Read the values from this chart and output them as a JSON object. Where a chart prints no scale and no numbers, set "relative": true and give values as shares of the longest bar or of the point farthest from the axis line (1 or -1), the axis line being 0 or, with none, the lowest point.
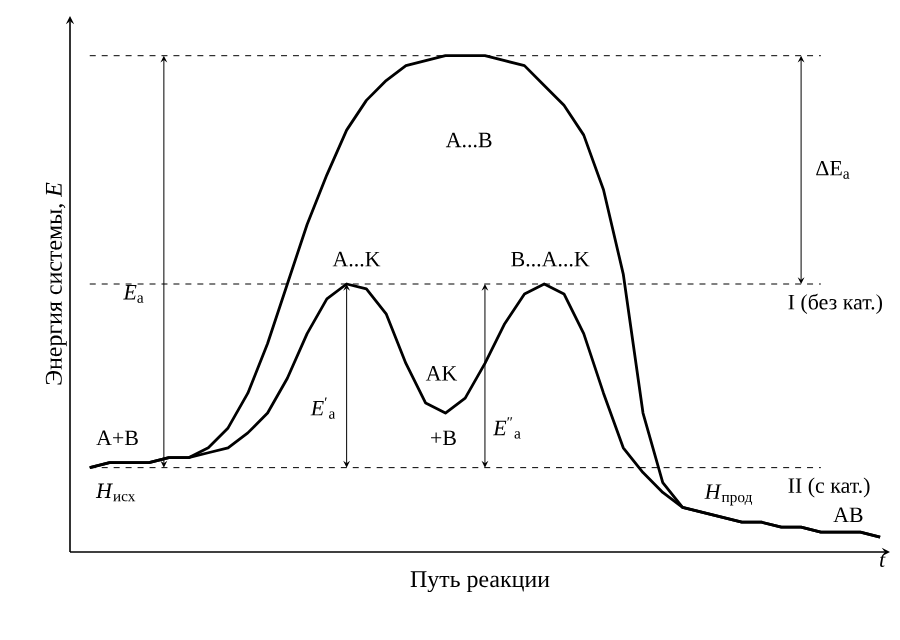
{
  "chart_data": {
    "type": "line",
    "relative": true,
    "xlabel": "Путь реакции",
    "ylabel": "Энергия системы, *E*",
    "categories": [
      null,
      null,
      null,
      null,
      null,
      null,
      null,
      null,
      null,
      null,
      null,
      null,
      null,
      null,
      null,
      null,
      null,
      null,
      null,
      null,
      null,
      null,
      null,
      null,
      null,
      null,
      null,
      null,
      null,
      null,
      null,
      null,
      null,
      null,
      null,
      null,
      null,
      null,
      null,
      null,
      null
    ],
    "series": [
      {
        "color": "#000000",
        "values": [
          0.17,
          0.18,
          0.18,
          0.18,
          0.19,
          0.19,
          0.21,
          0.25,
          0.32,
          0.42,
          0.54,
          0.66,
          0.76,
          0.85,
          0.91,
          0.95,
          0.98,
          0.99,
          1,
          1,
          1,
          0.99,
          0.98,
          0.94,
          0.9,
          0.84,
          0.73,
          0.56,
          0.28,
          0.14,
          0.09,
          0.08,
          0.07,
          0.06,
          0.06,
          0.05,
          0.05,
          0.04,
          0.04,
          0.04,
          0.03
        ]
      },
      {
        "color": "#000000",
        "values": [
          0.17,
          0.18,
          0.18,
          0.18,
          0.19,
          0.19,
          0.2,
          0.21,
          0.24,
          0.28,
          0.35,
          0.44,
          0.51,
          0.54,
          0.53,
          0.48,
          0.38,
          0.3,
          0.28,
          0.31,
          0.38,
          0.46,
          0.52,
          0.54,
          0.52,
          0.44,
          0.32,
          0.21,
          0.16,
          0.12,
          0.09,
          0.08,
          0.07,
          0.06,
          0.06,
          0.05,
          0.05,
          0.04,
          0.04,
          0.04,
          0.03
        ]
      }
    ],
    "ref_lines": [
      {
        "axis": "y",
        "value": 1,
        "line_style": "dashed"
      },
      {
        "axis": "y",
        "value": 0.54,
        "line_style": "dashed"
      },
      {
        "axis": "y",
        "value": 0.17,
        "line_style": "dashed"
      }
    ],
    "annotations": [
      "A...B",
      "*E*$_{а}$",
      "ΔE$_{а}$",
      "A...K",
      "B...A...K",
      "AK",
      "+B",
      "I (без кат.)",
      "II (с кат.)",
      "*E*$^{′}$$_{а}$",
      "*E*$^{″}$$_{а}$",
      "A+B",
      "*H*$_{исх}$",
      "*H*$_{прод}$",
      "AB",
      "t"
    ]
  }
}
